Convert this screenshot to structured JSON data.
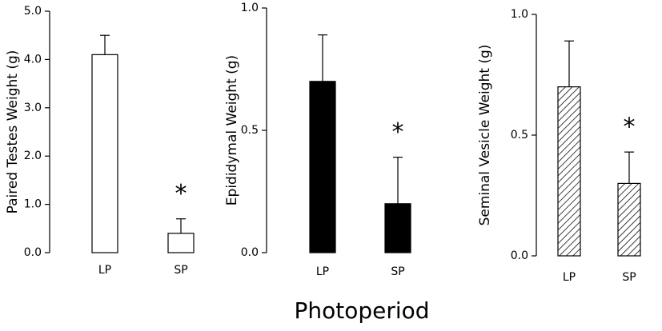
{
  "chart_data": [
    {
      "type": "bar",
      "ylabel": "Paired Testes Weight (g)",
      "categories": [
        "LP",
        "SP"
      ],
      "values": [
        4.1,
        0.4
      ],
      "errors": [
        0.4,
        0.3
      ],
      "color": "#ffffff",
      "annotation": "*",
      "ylim": [
        0,
        5
      ],
      "yticks": [
        {
          "value": 0,
          "label": "0.0"
        },
        {
          "value": 1,
          "label": "1.0"
        },
        {
          "value": 2,
          "label": "2.0"
        },
        {
          "value": 3,
          "label": "3.0"
        },
        {
          "value": 4,
          "label": "4.0"
        },
        {
          "value": 5,
          "label": "5.0"
        }
      ]
    },
    {
      "type": "bar",
      "ylabel": "Epididymal Weight (g)",
      "categories": [
        "LP",
        "SP"
      ],
      "values": [
        0.7,
        0.2
      ],
      "errors": [
        0.19,
        0.19
      ],
      "color": "#000000",
      "annotation": "*",
      "ylim": [
        0,
        1
      ],
      "yticks": [
        {
          "value": 0,
          "label": "0.0"
        },
        0.5,
        {
          "value": 1,
          "label": "1.0"
        }
      ]
    },
    {
      "type": "bar",
      "ylabel": "Seminal Vesicle Weight (g)",
      "categories": [
        "LP",
        "SP"
      ],
      "values": [
        0.7,
        0.3
      ],
      "errors": [
        0.19,
        0.13
      ],
      "color": "#000000",
      "pattern": "hatch",
      "annotation": "*",
      "ylim": [
        0,
        1
      ],
      "yticks": [
        {
          "value": 0,
          "label": "0.0"
        },
        0.5,
        {
          "value": 1,
          "label": "1.0"
        }
      ]
    }
  ],
  "xlabel": "Photoperiod"
}
